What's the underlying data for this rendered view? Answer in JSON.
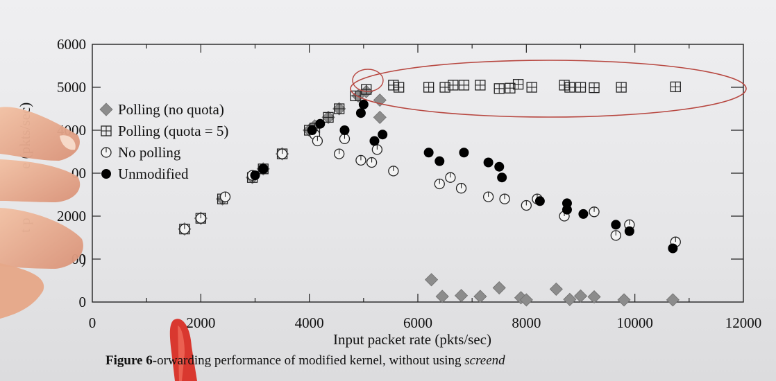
{
  "chart_data": {
    "type": "scatter",
    "xlabel": "Input packet rate (pkts/sec)",
    "ylabel": "t p",
    "ylabel_tail": "e (pkts/sec)",
    "xlim": [
      0,
      12000
    ],
    "ylim": [
      0,
      6000
    ],
    "xticks": [
      0,
      2000,
      4000,
      6000,
      8000,
      10000,
      12000
    ],
    "yticks": [
      0,
      2000,
      4000,
      5000,
      6000
    ],
    "ytick_labels": [
      "0",
      "2000",
      "4000",
      "5000",
      "6000"
    ],
    "ytick_partial": [
      "00",
      "00",
      ")"
    ],
    "grid": false,
    "legend_position": "upper-left",
    "series": [
      {
        "name": "Polling (no quota)",
        "marker": "diamond",
        "color": "#8c8c8c",
        "x": [
          1700,
          2000,
          2400,
          2950,
          3150,
          3500,
          4000,
          4100,
          4350,
          4550,
          4900,
          5050,
          5300,
          5300,
          6250,
          6450,
          6800,
          7150,
          7500,
          7900,
          8000,
          8550,
          8800,
          9000,
          9250,
          9800,
          10700
        ],
        "y": [
          1700,
          1950,
          2400,
          2900,
          3100,
          3450,
          4000,
          4100,
          4300,
          4500,
          4800,
          4900,
          4700,
          4300,
          520,
          130,
          150,
          130,
          330,
          100,
          50,
          300,
          60,
          140,
          120,
          50,
          50
        ]
      },
      {
        "name": "Polling (quota = 5)",
        "marker": "square",
        "color": "#222222",
        "x": [
          1700,
          2000,
          2400,
          2950,
          3150,
          3500,
          4000,
          4100,
          4350,
          4550,
          4850,
          5050,
          5550,
          5650,
          6200,
          6500,
          6650,
          6850,
          7150,
          7500,
          7700,
          7850,
          8100,
          8700,
          8800,
          9000,
          9250,
          9750,
          10750
        ],
        "y": [
          1700,
          1950,
          2400,
          2900,
          3100,
          3450,
          4000,
          4050,
          4300,
          4500,
          4800,
          4950,
          5050,
          5000,
          5000,
          5000,
          5050,
          5050,
          5050,
          4970,
          4980,
          5070,
          5000,
          5050,
          5000,
          5000,
          4990,
          5000,
          5010
        ]
      },
      {
        "name": "No polling",
        "marker": "circle-open",
        "color": "#222222",
        "x": [
          1700,
          2000,
          2450,
          2950,
          3150,
          3500,
          4100,
          4150,
          4550,
          4650,
          4950,
          5150,
          5250,
          5550,
          6400,
          6600,
          6800,
          7300,
          7600,
          8000,
          8200,
          8700,
          9250,
          9650,
          9900,
          10750
        ],
        "y": [
          1700,
          1950,
          2450,
          2950,
          3100,
          3450,
          3900,
          3750,
          3450,
          3800,
          3300,
          3250,
          3550,
          3050,
          2750,
          2900,
          2650,
          2450,
          2400,
          2250,
          2400,
          2000,
          2100,
          1550,
          1800,
          1400
        ]
      },
      {
        "name": "Unmodified",
        "marker": "circle-filled",
        "color": "#000000",
        "x": [
          3000,
          3150,
          4050,
          4200,
          4650,
          4950,
          5000,
          5200,
          5350,
          6200,
          6400,
          6850,
          7300,
          7500,
          7550,
          8250,
          8750,
          8750,
          9050,
          9650,
          9900,
          10700
        ],
        "y": [
          2950,
          3100,
          4000,
          4150,
          4000,
          4400,
          4600,
          3750,
          3900,
          3480,
          3280,
          3480,
          3250,
          3150,
          2900,
          2350,
          2300,
          2150,
          2050,
          1800,
          1650,
          1250
        ]
      }
    ]
  },
  "caption": {
    "prefix": "Figure 6-",
    "text": "orwarding performance of modified kernel, without using ",
    "italic": "screend"
  }
}
